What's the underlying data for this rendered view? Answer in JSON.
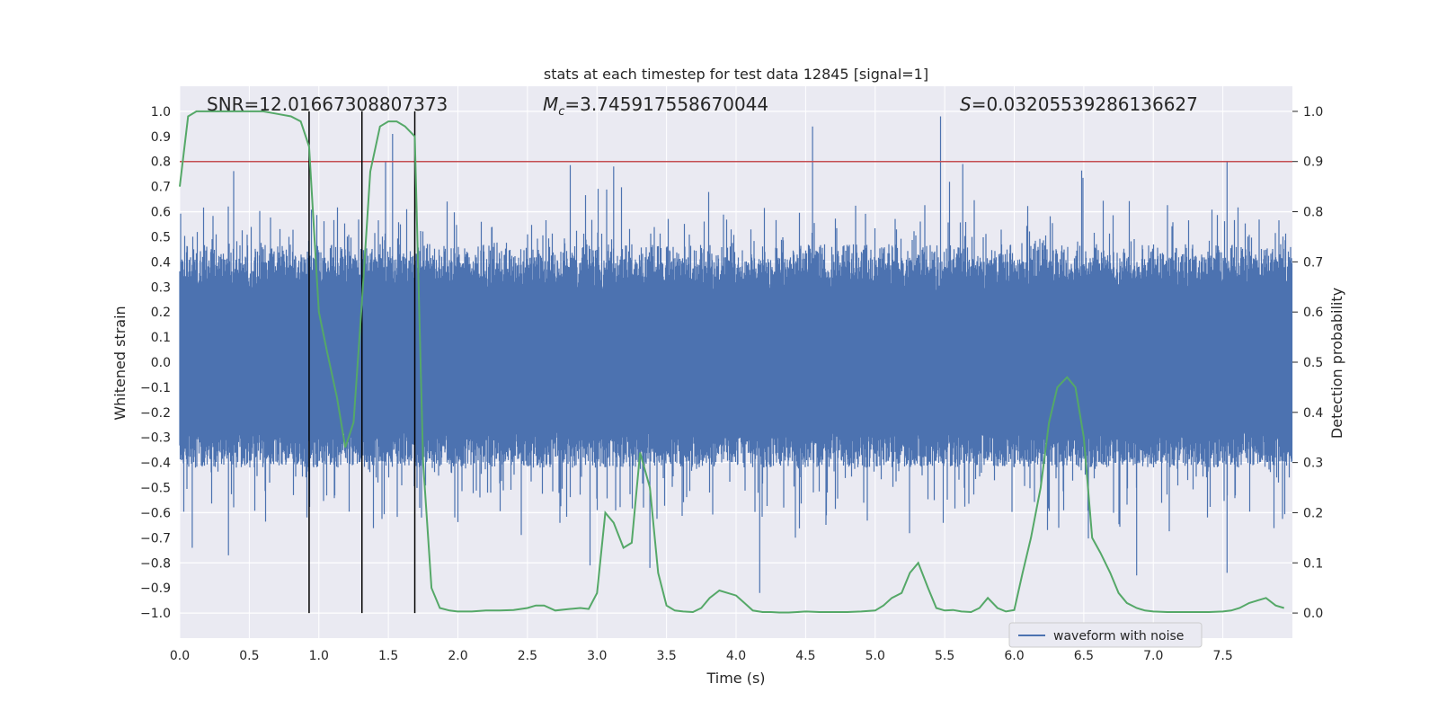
{
  "chart_data": {
    "type": "line",
    "title": "stats at each timestep for test data 12845 [signal=1]",
    "xlabel": "Time (s)",
    "ylabel": "Whitened strain",
    "ylabel_right": "Detection probability",
    "xlim": [
      0.0,
      8.0
    ],
    "ylim": [
      -1.1,
      1.1
    ],
    "ylim_right": [
      -0.05,
      1.05
    ],
    "x_ticks": [
      0.0,
      0.5,
      1.0,
      1.5,
      2.0,
      2.5,
      3.0,
      3.5,
      4.0,
      4.5,
      5.0,
      5.5,
      6.0,
      6.5,
      7.0,
      7.5
    ],
    "x_tick_labels": [
      "0.0",
      "0.5",
      "1.0",
      "1.5",
      "2.0",
      "2.5",
      "3.0",
      "3.5",
      "4.0",
      "4.5",
      "5.0",
      "5.5",
      "6.0",
      "6.5",
      "7.0",
      "7.5"
    ],
    "y_ticks": [
      -1.0,
      -0.9,
      -0.8,
      -0.7,
      -0.6,
      -0.5,
      -0.4,
      -0.3,
      -0.2,
      -0.1,
      0.0,
      0.1,
      0.2,
      0.3,
      0.4,
      0.5,
      0.6,
      0.7,
      0.8,
      0.9,
      1.0
    ],
    "y_tick_labels": [
      "−1.0",
      "−0.9",
      "−0.8",
      "−0.7",
      "−0.6",
      "−0.5",
      "−0.4",
      "−0.3",
      "−0.2",
      "−0.1",
      "0.0",
      "0.1",
      "0.2",
      "0.3",
      "0.4",
      "0.5",
      "0.6",
      "0.7",
      "0.8",
      "0.9",
      "1.0"
    ],
    "y_right_ticks": [
      0.0,
      0.1,
      0.2,
      0.3,
      0.4,
      0.5,
      0.6,
      0.7,
      0.8,
      0.9,
      1.0
    ],
    "y_right_tick_labels": [
      "0.0",
      "0.1",
      "0.2",
      "0.3",
      "0.4",
      "0.5",
      "0.6",
      "0.7",
      "0.8",
      "0.9",
      "1.0"
    ],
    "annotations": {
      "snr": "SNR=12.01667308807373",
      "mc_symbol": "M",
      "mc_sub": "c",
      "mc_value": "=3.745917558670044",
      "s_symbol": "S",
      "s_value": "=0.03205539286136627"
    },
    "threshold": {
      "value": 0.9,
      "axis": "right",
      "color": "#c44e52"
    },
    "vertical_lines": {
      "x": [
        0.93,
        1.31,
        1.69
      ],
      "y_range": [
        -1.0,
        1.0
      ],
      "color": "#000000"
    },
    "waveform": {
      "name": "waveform with noise",
      "color": "#4c72b0",
      "duration_s": 8.0,
      "typical_amplitude": 0.28,
      "max_amplitude": 0.98,
      "min_amplitude": -0.92
    },
    "detection_probability": {
      "color": "#55a868",
      "x": [
        0.0,
        0.06,
        0.12,
        0.2,
        0.3,
        0.4,
        0.5,
        0.6,
        0.7,
        0.8,
        0.87,
        0.93,
        1.0,
        1.06,
        1.13,
        1.19,
        1.25,
        1.31,
        1.37,
        1.44,
        1.5,
        1.56,
        1.62,
        1.69,
        1.75,
        1.81,
        1.87,
        1.94,
        2.0,
        2.1,
        2.2,
        2.3,
        2.4,
        2.5,
        2.56,
        2.62,
        2.7,
        2.8,
        2.88,
        2.94,
        3.0,
        3.06,
        3.12,
        3.19,
        3.25,
        3.31,
        3.38,
        3.44,
        3.5,
        3.56,
        3.62,
        3.69,
        3.75,
        3.81,
        3.88,
        3.94,
        4.0,
        4.06,
        4.12,
        4.19,
        4.25,
        4.31,
        4.38,
        4.44,
        4.5,
        4.6,
        4.7,
        4.8,
        4.9,
        5.0,
        5.06,
        5.12,
        5.19,
        5.25,
        5.31,
        5.38,
        5.44,
        5.5,
        5.56,
        5.62,
        5.69,
        5.75,
        5.81,
        5.88,
        5.94,
        6.0,
        6.06,
        6.12,
        6.19,
        6.25,
        6.31,
        6.38,
        6.44,
        6.5,
        6.56,
        6.62,
        6.69,
        6.75,
        6.81,
        6.88,
        6.94,
        7.0,
        7.1,
        7.2,
        7.3,
        7.4,
        7.5,
        7.56,
        7.62,
        7.69,
        7.75,
        7.81,
        7.88,
        7.94
      ],
      "y": [
        0.85,
        0.99,
        1.0,
        1.0,
        1.0,
        1.0,
        1.0,
        1.0,
        0.995,
        0.99,
        0.98,
        0.93,
        0.6,
        0.52,
        0.43,
        0.33,
        0.38,
        0.62,
        0.88,
        0.97,
        0.98,
        0.98,
        0.97,
        0.95,
        0.3,
        0.05,
        0.01,
        0.005,
        0.003,
        0.003,
        0.005,
        0.005,
        0.006,
        0.01,
        0.015,
        0.015,
        0.005,
        0.008,
        0.01,
        0.008,
        0.04,
        0.2,
        0.18,
        0.13,
        0.14,
        0.32,
        0.25,
        0.08,
        0.015,
        0.005,
        0.003,
        0.002,
        0.01,
        0.03,
        0.045,
        0.04,
        0.035,
        0.02,
        0.005,
        0.002,
        0.002,
        0.001,
        0.001,
        0.002,
        0.003,
        0.002,
        0.002,
        0.002,
        0.003,
        0.005,
        0.015,
        0.03,
        0.04,
        0.08,
        0.1,
        0.05,
        0.01,
        0.005,
        0.006,
        0.003,
        0.002,
        0.01,
        0.03,
        0.01,
        0.003,
        0.006,
        0.08,
        0.15,
        0.25,
        0.38,
        0.45,
        0.47,
        0.45,
        0.35,
        0.15,
        0.12,
        0.08,
        0.04,
        0.02,
        0.01,
        0.005,
        0.003,
        0.002,
        0.002,
        0.002,
        0.002,
        0.003,
        0.005,
        0.01,
        0.02,
        0.025,
        0.03,
        0.015,
        0.01
      ]
    },
    "legend": {
      "entries": [
        "waveform with noise"
      ],
      "position": "lower-right"
    }
  }
}
